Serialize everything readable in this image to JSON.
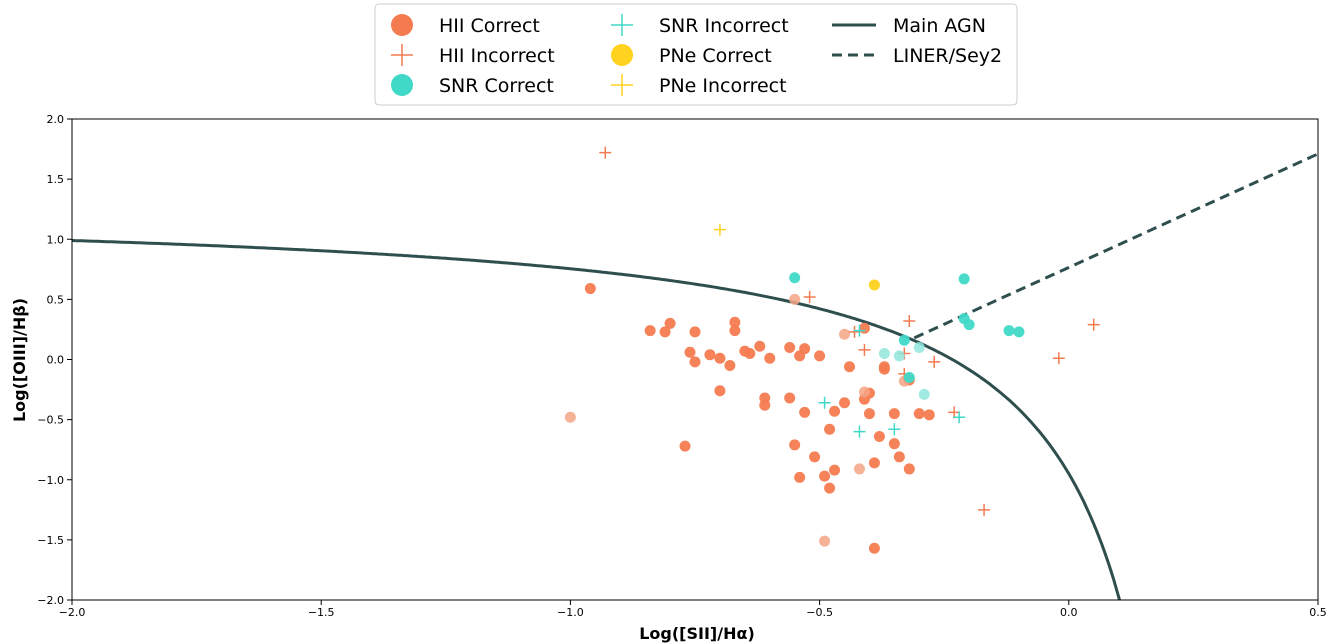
{
  "chart_data": {
    "type": "scatter",
    "xlabel": "Log([SII]/Hα)",
    "ylabel": "Log([OIII]/Hβ)",
    "xlim": [
      -2.0,
      0.5
    ],
    "ylim": [
      -2.0,
      2.0
    ],
    "x_ticks": [
      -2.0,
      -1.5,
      -1.0,
      -0.5,
      0.0,
      0.5
    ],
    "y_ticks": [
      -2.0,
      -1.5,
      -1.0,
      -0.5,
      0.0,
      0.5,
      1.0,
      1.5,
      2.0
    ],
    "x_tick_labels": [
      "−2.0",
      "−1.5",
      "−1.0",
      "−0.5",
      "0.0",
      "0.5"
    ],
    "y_tick_labels": [
      "−2.0",
      "−1.5",
      "−1.0",
      "−0.5",
      "0.0",
      "0.5",
      "1.0",
      "1.5",
      "2.0"
    ],
    "grid": false,
    "legend_position": "top-center",
    "colors": {
      "hii": "#f47b50",
      "snr": "#40d9c8",
      "pne": "#ffd21f",
      "line": "#2f4f4f"
    },
    "series": [
      {
        "name": "HII Correct",
        "marker": "circle",
        "color": "#f47b50",
        "points": [
          [
            -0.96,
            0.59
          ],
          [
            -0.84,
            0.24
          ],
          [
            -0.81,
            0.23
          ],
          [
            -0.8,
            0.3
          ],
          [
            -0.76,
            0.06
          ],
          [
            -0.75,
            -0.02
          ],
          [
            -0.75,
            0.23
          ],
          [
            -0.72,
            0.04
          ],
          [
            -0.7,
            -0.26
          ],
          [
            -0.7,
            0.01
          ],
          [
            -0.68,
            -0.05
          ],
          [
            -0.67,
            0.31
          ],
          [
            -0.67,
            0.24
          ],
          [
            -0.65,
            0.07
          ],
          [
            -0.64,
            0.05
          ],
          [
            -0.62,
            0.11
          ],
          [
            -0.61,
            -0.32
          ],
          [
            -0.61,
            -0.38
          ],
          [
            -0.6,
            0.01
          ],
          [
            -0.77,
            -0.72
          ],
          [
            -0.56,
            0.1
          ],
          [
            -0.56,
            -0.32
          ],
          [
            -0.55,
            -0.71
          ],
          [
            -0.54,
            -0.98
          ],
          [
            -0.54,
            0.03
          ],
          [
            -0.53,
            -0.44
          ],
          [
            -0.53,
            0.09
          ],
          [
            -0.51,
            -0.81
          ],
          [
            -0.5,
            0.03
          ],
          [
            -0.49,
            -0.97
          ],
          [
            -0.48,
            -0.58
          ],
          [
            -0.47,
            -0.43
          ],
          [
            -0.47,
            -0.92
          ],
          [
            -0.48,
            -1.07
          ],
          [
            -0.45,
            -0.36
          ],
          [
            -0.44,
            -0.06
          ],
          [
            -0.41,
            -0.33
          ],
          [
            -0.41,
            0.26
          ],
          [
            -0.4,
            -0.28
          ],
          [
            -0.4,
            -0.45
          ],
          [
            -0.39,
            -0.86
          ],
          [
            -0.39,
            -1.57
          ],
          [
            -0.38,
            -0.64
          ],
          [
            -0.37,
            -0.06
          ],
          [
            -0.37,
            -0.08
          ],
          [
            -0.35,
            -0.7
          ],
          [
            -0.35,
            -0.45
          ],
          [
            -0.34,
            -0.81
          ],
          [
            -0.32,
            -0.91
          ],
          [
            -0.32,
            -0.17
          ],
          [
            -0.3,
            -0.45
          ],
          [
            -0.28,
            -0.46
          ]
        ]
      },
      {
        "name": "HII Correct (light)",
        "marker": "circle-light",
        "color": "#f5a585",
        "points": [
          [
            -1.0,
            -0.48
          ],
          [
            -0.55,
            0.5
          ],
          [
            -0.45,
            0.21
          ],
          [
            -0.42,
            -0.91
          ],
          [
            -0.41,
            -0.27
          ],
          [
            -0.49,
            -1.51
          ],
          [
            -0.33,
            -0.18
          ]
        ]
      },
      {
        "name": "HII Incorrect",
        "marker": "plus",
        "color": "#f47b50",
        "points": [
          [
            -0.93,
            1.72
          ],
          [
            -0.52,
            0.52
          ],
          [
            -0.41,
            0.08
          ],
          [
            -0.32,
            0.32
          ],
          [
            -0.33,
            0.05
          ],
          [
            -0.33,
            -0.12
          ],
          [
            -0.27,
            -0.02
          ],
          [
            -0.23,
            -0.44
          ],
          [
            -0.17,
            -1.25
          ],
          [
            -0.02,
            0.01
          ],
          [
            0.05,
            0.29
          ],
          [
            -0.43,
            0.23
          ]
        ]
      },
      {
        "name": "SNR Correct",
        "marker": "circle",
        "color": "#40d9c8",
        "points": [
          [
            -0.55,
            0.68
          ],
          [
            -0.21,
            0.67
          ],
          [
            -0.21,
            0.34
          ],
          [
            -0.2,
            0.29
          ],
          [
            -0.12,
            0.24
          ],
          [
            -0.1,
            0.23
          ],
          [
            -0.33,
            0.16
          ],
          [
            -0.32,
            -0.15
          ]
        ]
      },
      {
        "name": "SNR Correct (light)",
        "marker": "circle-light",
        "color": "#8fe6dc",
        "points": [
          [
            -0.37,
            0.05
          ],
          [
            -0.34,
            0.03
          ],
          [
            -0.3,
            0.1
          ],
          [
            -0.29,
            -0.29
          ]
        ]
      },
      {
        "name": "SNR Incorrect",
        "marker": "plus",
        "color": "#40d9c8",
        "points": [
          [
            -0.49,
            -0.36
          ],
          [
            -0.42,
            -0.6
          ],
          [
            -0.35,
            -0.58
          ],
          [
            -0.22,
            -0.48
          ],
          [
            -0.42,
            0.24
          ]
        ]
      },
      {
        "name": "PNe Correct",
        "marker": "circle",
        "color": "#ffd21f",
        "points": [
          [
            -0.39,
            0.62
          ]
        ]
      },
      {
        "name": "PNe Incorrect",
        "marker": "plus",
        "color": "#ffd21f",
        "points": [
          [
            -0.7,
            1.08
          ]
        ]
      }
    ],
    "curves": [
      {
        "name": "Main AGN",
        "style": "solid",
        "color": "#2f4f4f"
      },
      {
        "name": "LINER/Sey2",
        "style": "dashed",
        "color": "#2f4f4f",
        "from": [
          -0.31,
          0.18
        ],
        "to": [
          0.5,
          1.71
        ]
      }
    ],
    "legend": [
      {
        "label": "HII Correct",
        "marker": "circle",
        "color": "#f47b50"
      },
      {
        "label": "HII Incorrect",
        "marker": "plus",
        "color": "#f47b50"
      },
      {
        "label": "SNR Correct",
        "marker": "circle",
        "color": "#40d9c8"
      },
      {
        "label": "SNR Incorrect",
        "marker": "plus",
        "color": "#40d9c8"
      },
      {
        "label": "PNe Correct",
        "marker": "circle",
        "color": "#ffd21f"
      },
      {
        "label": "PNe Incorrect",
        "marker": "plus",
        "color": "#ffd21f"
      },
      {
        "label": "Main AGN",
        "marker": "solid-line",
        "color": "#2f4f4f"
      },
      {
        "label": "LINER/Sey2",
        "marker": "dashed-line",
        "color": "#2f4f4f"
      }
    ]
  }
}
